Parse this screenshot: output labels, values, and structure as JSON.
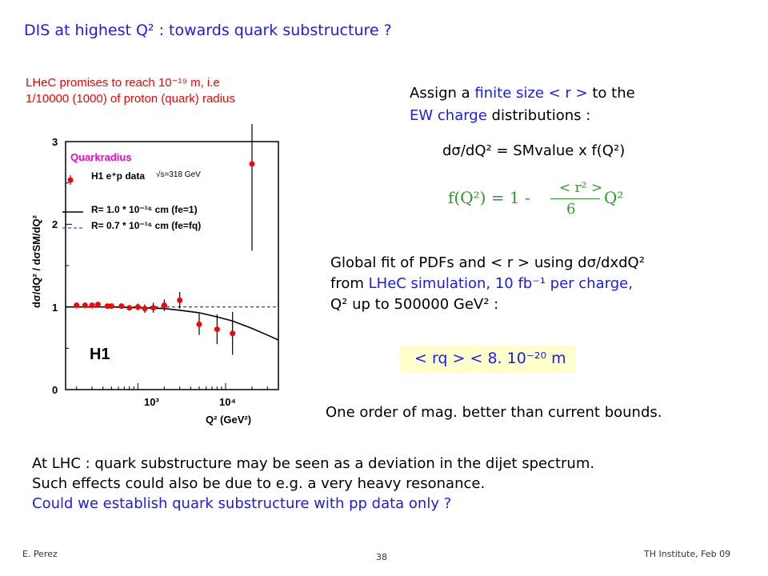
{
  "slide": {
    "title": "DIS at highest Q² : towards quark substructure ?",
    "lhec_line1": "LHeC promises to reach 10⁻¹⁹ m, i.e",
    "lhec_line2": "1/10000 (1000) of proton (quark) radius",
    "assign_line1_a": "Assign a ",
    "assign_line1_b": "finite size < r >",
    "assign_line1_c": " to the",
    "assign_line2_a": "EW charge",
    "assign_line2_b": " distributions  :",
    "formula1": "dσ/dQ² = SMvalue x f(Q²)",
    "formula2_lhs": "f(Q²) = 1 -",
    "formula2_num": "< r² >",
    "formula2_den": "6",
    "formula2_rhs": "Q²",
    "global_line1": "Global fit of PDFs and < r > using dσ/dxdQ²",
    "global_line2_a": "from ",
    "global_line2_b": "LHeC simulation,  10 fb⁻¹ per charge,",
    "global_line3": "Q² up to   500000 GeV²  :",
    "result": "< rq > < 8. 10⁻²⁰ m",
    "order": "One order of mag. better than current bounds.",
    "bottom_line1": "At LHC : quark substructure may be seen as a deviation in the dijet spectrum.",
    "bottom_line2": "Such effects could also be due to e.g. a very heavy resonance.",
    "bottom_line3": "Could we establish quark substructure with pp data only ?",
    "footer_left": "E. Perez",
    "footer_center": "38",
    "footer_right": "TH Institute, Feb 09"
  },
  "colors": {
    "blue": "#1a1aff",
    "red": "#ff0000",
    "green": "#2a9a2a",
    "highlight": "#ffffcc"
  },
  "chart_data": {
    "type": "scatter",
    "title": "Quarkradius",
    "xlabel": "Q² (GeV²)",
    "ylabel": "dσ/dQ² / dσSM/dQ²",
    "x_scale": "log",
    "xlim": [
      150,
      40000
    ],
    "ylim": [
      0,
      3
    ],
    "x_ticks": [
      "10³",
      "10⁴"
    ],
    "y_ticks": [
      "0",
      "1",
      "2",
      "3"
    ],
    "experiment_label": "H1",
    "legend": [
      {
        "name": "H1 e⁺p data",
        "note": "√s=318 GeV",
        "style": "points"
      },
      {
        "name": "R= 1.0 * 10⁻¹⁶ cm  (fe=1)",
        "style": "solid"
      },
      {
        "name": "R= 0.7 * 10⁻¹⁶ cm  (fe=fq)",
        "style": "dashed"
      }
    ],
    "series": [
      {
        "name": "H1 e⁺p data",
        "x": [
          200,
          250,
          300,
          350,
          450,
          500,
          650,
          800,
          1000,
          1200,
          1500,
          2000,
          3000,
          5000,
          8000,
          12000,
          20000
        ],
        "y": [
          1.02,
          1.02,
          1.02,
          1.03,
          1.01,
          1.01,
          1.01,
          0.99,
          1.0,
          0.98,
          0.99,
          1.02,
          1.08,
          0.79,
          0.73,
          0.68,
          2.73
        ],
        "err": [
          0.03,
          0.03,
          0.03,
          0.03,
          0.03,
          0.03,
          0.03,
          0.03,
          0.04,
          0.05,
          0.06,
          0.07,
          0.1,
          0.13,
          0.18,
          0.26,
          1.05
        ]
      },
      {
        "name": "R= 1.0 * 10⁻¹⁶ cm  (fe=1)",
        "x": [
          150,
          500,
          1000,
          2000,
          3000,
          5000,
          8000,
          12000,
          20000,
          30000,
          40000
        ],
        "y": [
          1.0,
          1.0,
          0.99,
          0.98,
          0.96,
          0.93,
          0.88,
          0.83,
          0.74,
          0.66,
          0.6
        ]
      },
      {
        "name": "R= 0.7 * 10⁻¹⁶ cm  (fe=fq)",
        "x": [
          150,
          40000
        ],
        "y": [
          1.0,
          1.0
        ]
      }
    ]
  }
}
